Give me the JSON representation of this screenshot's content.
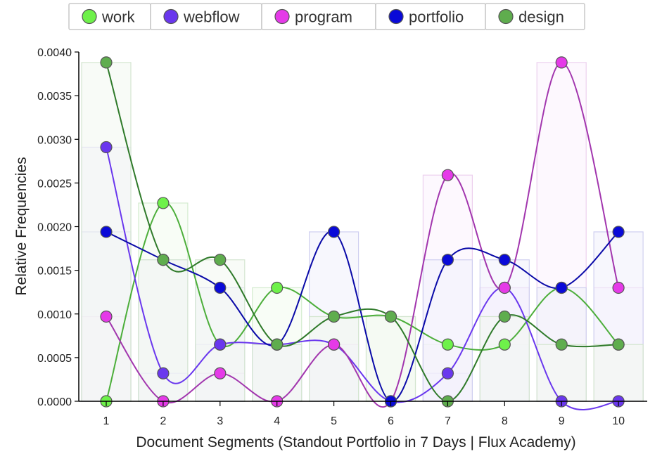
{
  "chart_data": {
    "type": "line",
    "xlabel": "Document Segments (Standout Portfolio in 7 Days | Flux Academy)",
    "ylabel": "Relative Frequencies",
    "categories": [
      "1",
      "2",
      "3",
      "4",
      "5",
      "6",
      "7",
      "8",
      "9",
      "10"
    ],
    "ylim": [
      0,
      0.004
    ],
    "yticks": [
      "0.0000",
      "0.0005",
      "0.0010",
      "0.0015",
      "0.0020",
      "0.0025",
      "0.0030",
      "0.0035",
      "0.0040"
    ],
    "legend_position": "top",
    "grid": false,
    "series": [
      {
        "name": "work",
        "color": "#6ef14a",
        "line_color": "#4cae3a",
        "bar_fill": "#f2fcee",
        "bar_stroke": "#d4ecd0",
        "values": [
          0.0,
          0.00227,
          0.00065,
          0.0013,
          0.00097,
          0.00097,
          0.00065,
          0.00065,
          0.0013,
          0.00065
        ]
      },
      {
        "name": "webflow",
        "color": "#6a37ee",
        "line_color": "#6a37ee",
        "bar_fill": "#f3f0fd",
        "bar_stroke": "#d8d0f4",
        "values": [
          0.00291,
          0.00032,
          0.00065,
          0.00065,
          0.00065,
          0.0,
          0.00032,
          0.0013,
          0.0,
          0.0
        ]
      },
      {
        "name": "program",
        "color": "#e53ae8",
        "line_color": "#a236ae",
        "bar_fill": "#fcf2fd",
        "bar_stroke": "#ecd0ee",
        "values": [
          0.00097,
          0.0,
          0.00032,
          0.0,
          0.00065,
          0.0,
          0.00259,
          0.0013,
          0.00388,
          0.0013
        ]
      },
      {
        "name": "portfolio",
        "color": "#0a0ad8",
        "line_color": "#0a0aa8",
        "bar_fill": "#f0f0fc",
        "bar_stroke": "#d0d0f0",
        "values": [
          0.00194,
          0.00162,
          0.0013,
          0.00065,
          0.00194,
          0.0,
          0.00162,
          0.00162,
          0.0013,
          0.00194
        ]
      },
      {
        "name": "design",
        "color": "#5fad4e",
        "line_color": "#2f7a2a",
        "bar_fill": "#f2f8f0",
        "bar_stroke": "#d4e6d0",
        "values": [
          0.00388,
          0.00162,
          0.00162,
          0.00065,
          0.00097,
          0.00097,
          0.0,
          0.00097,
          0.00065,
          0.00065
        ]
      }
    ]
  }
}
